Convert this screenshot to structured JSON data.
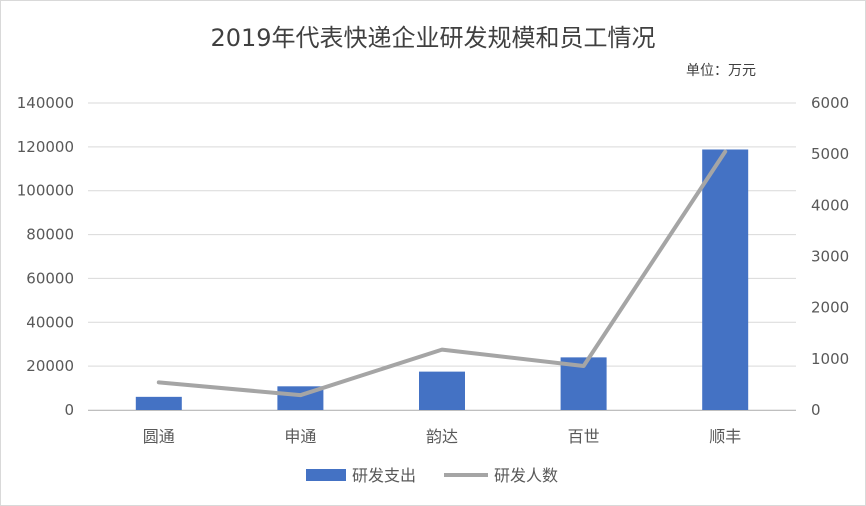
{
  "chart_data": {
    "type": "bar",
    "title": "2019年代表快递企业研发规模和员工情况",
    "unit_note": "单位：万元",
    "categories": [
      "圆通",
      "申通",
      "韵达",
      "百世",
      "顺丰"
    ],
    "series": [
      {
        "name": "研发支出",
        "type": "bar",
        "axis": "left",
        "color": "#4472c4",
        "values": [
          6000,
          10800,
          17500,
          24000,
          118800
        ]
      },
      {
        "name": "研发人数",
        "type": "line",
        "axis": "right",
        "color": "#a5a5a5",
        "values": [
          540,
          290,
          1180,
          860,
          5050
        ]
      }
    ],
    "y_left": {
      "min": 0,
      "max": 140000,
      "ticks": [
        "0",
        "20000",
        "40000",
        "60000",
        "80000",
        "100000",
        "120000",
        "140000"
      ]
    },
    "y_right": {
      "min": 0,
      "max": 6000,
      "ticks": [
        "0",
        "1000",
        "2000",
        "3000",
        "4000",
        "5000",
        "6000"
      ]
    },
    "grid": true,
    "legend_position": "bottom"
  }
}
